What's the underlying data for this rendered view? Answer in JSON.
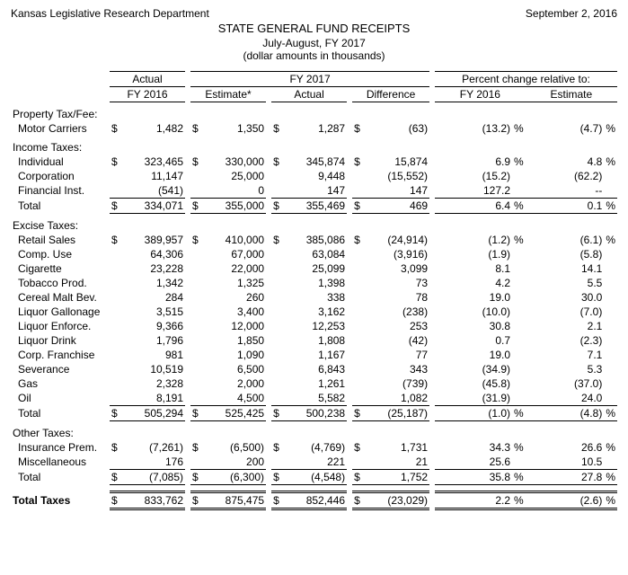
{
  "header": {
    "dept": "Kansas Legislative Research Department",
    "date": "September 2, 2016",
    "title1": "STATE GENERAL FUND RECEIPTS",
    "title2": "July-August, FY 2017",
    "title3": "(dollar amounts in thousands)"
  },
  "colgroups": {
    "actual": "Actual",
    "fy2017": "FY 2017",
    "pct_rel": "Percent change relative to:"
  },
  "cols": {
    "actual_fy2016": "FY 2016",
    "estimate": "Estimate*",
    "actual": "Actual",
    "difference": "Difference",
    "pct_fy2016": "FY 2016",
    "pct_estimate": "Estimate"
  },
  "sections": {
    "property": "Property Tax/Fee:",
    "income": "Income Taxes:",
    "excise": "Excise Taxes:",
    "other": "Other Taxes:"
  },
  "rows": {
    "motor": {
      "label": "Motor Carriers",
      "a": "1,482",
      "e": "1,350",
      "ac": "1,287",
      "d": "(63)",
      "p1": "(13.2)",
      "p2": "(4.7)",
      "cur": true,
      "pct": true
    },
    "indiv": {
      "label": "Individual",
      "a": "323,465",
      "e": "330,000",
      "ac": "345,874",
      "d": "15,874",
      "p1": "6.9",
      "p2": "4.8",
      "cur": true,
      "pct": true
    },
    "corp": {
      "label": "Corporation",
      "a": "11,147",
      "e": "25,000",
      "ac": "9,448",
      "d": "(15,552)",
      "p1": "(15.2)",
      "p2": "(62.2)"
    },
    "fin": {
      "label": "Financial Inst.",
      "a": "(541)",
      "e": "0",
      "ac": "147",
      "d": "147",
      "p1": "127.2",
      "p2": "--"
    },
    "inc_tot": {
      "label": "Total",
      "a": "334,071",
      "e": "355,000",
      "ac": "355,469",
      "d": "469",
      "p1": "6.4",
      "p2": "0.1",
      "cur": true,
      "pct": true
    },
    "retail": {
      "label": "Retail Sales",
      "a": "389,957",
      "e": "410,000",
      "ac": "385,086",
      "d": "(24,914)",
      "p1": "(1.2)",
      "p2": "(6.1)",
      "cur": true,
      "pct": true
    },
    "compuse": {
      "label": "Comp. Use",
      "a": "64,306",
      "e": "67,000",
      "ac": "63,084",
      "d": "(3,916)",
      "p1": "(1.9)",
      "p2": "(5.8)"
    },
    "cig": {
      "label": "Cigarette",
      "a": "23,228",
      "e": "22,000",
      "ac": "25,099",
      "d": "3,099",
      "p1": "8.1",
      "p2": "14.1"
    },
    "tobacco": {
      "label": "Tobacco Prod.",
      "a": "1,342",
      "e": "1,325",
      "ac": "1,398",
      "d": "73",
      "p1": "4.2",
      "p2": "5.5"
    },
    "cereal": {
      "label": "Cereal Malt Bev.",
      "a": "284",
      "e": "260",
      "ac": "338",
      "d": "78",
      "p1": "19.0",
      "p2": "30.0"
    },
    "lgal": {
      "label": "Liquor Gallonage",
      "a": "3,515",
      "e": "3,400",
      "ac": "3,162",
      "d": "(238)",
      "p1": "(10.0)",
      "p2": "(7.0)"
    },
    "lenf": {
      "label": "Liquor Enforce.",
      "a": "9,366",
      "e": "12,000",
      "ac": "12,253",
      "d": "253",
      "p1": "30.8",
      "p2": "2.1"
    },
    "ldrink": {
      "label": "Liquor Drink",
      "a": "1,796",
      "e": "1,850",
      "ac": "1,808",
      "d": "(42)",
      "p1": "0.7",
      "p2": "(2.3)"
    },
    "cfran": {
      "label": "Corp. Franchise",
      "a": "981",
      "e": "1,090",
      "ac": "1,167",
      "d": "77",
      "p1": "19.0",
      "p2": "7.1"
    },
    "sev": {
      "label": "Severance",
      "a": "10,519",
      "e": "6,500",
      "ac": "6,843",
      "d": "343",
      "p1": "(34.9)",
      "p2": "5.3"
    },
    "gas": {
      "label": "Gas",
      "a": "2,328",
      "e": "2,000",
      "ac": "1,261",
      "d": "(739)",
      "p1": "(45.8)",
      "p2": "(37.0)"
    },
    "oil": {
      "label": "Oil",
      "a": "8,191",
      "e": "4,500",
      "ac": "5,582",
      "d": "1,082",
      "p1": "(31.9)",
      "p2": "24.0"
    },
    "exc_tot": {
      "label": "Total",
      "a": "505,294",
      "e": "525,425",
      "ac": "500,238",
      "d": "(25,187)",
      "p1": "(1.0)",
      "p2": "(4.8)",
      "cur": true,
      "pct": true
    },
    "ins": {
      "label": "Insurance Prem.",
      "a": "(7,261)",
      "e": "(6,500)",
      "ac": "(4,769)",
      "d": "1,731",
      "p1": "34.3",
      "p2": "26.6",
      "cur": true,
      "pct": true
    },
    "misc": {
      "label": "Miscellaneous",
      "a": "176",
      "e": "200",
      "ac": "221",
      "d": "21",
      "p1": "25.6",
      "p2": "10.5"
    },
    "oth_tot": {
      "label": "Total",
      "a": "(7,085)",
      "e": "(6,300)",
      "ac": "(4,548)",
      "d": "1,752",
      "p1": "35.8",
      "p2": "27.8",
      "cur": true,
      "pct": true
    },
    "grand": {
      "label": "Total Taxes",
      "a": "833,762",
      "e": "875,475",
      "ac": "852,446",
      "d": "(23,029)",
      "p1": "2.2",
      "p2": "(2.6)",
      "cur": true,
      "pct": true
    }
  }
}
